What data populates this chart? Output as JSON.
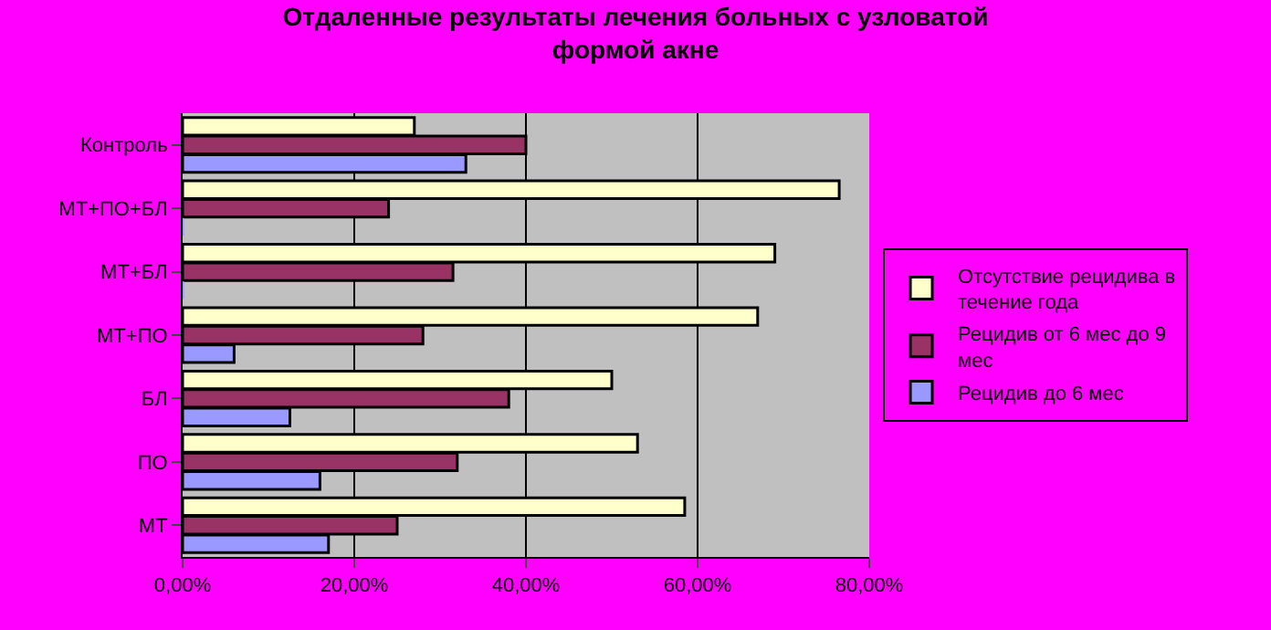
{
  "chart_data": {
    "type": "bar",
    "orientation": "horizontal",
    "title": "Отдаленные результаты лечения больных с узловатой формой акне",
    "categories": [
      "Контроль",
      "МТ+ПО+БЛ",
      "МТ+БЛ",
      "МТ+ПО",
      "БЛ",
      "ПО",
      "МТ"
    ],
    "series": [
      {
        "name": "Отсутствие рецидива в течение года",
        "color": "#ffffcc",
        "values": [
          27,
          76.5,
          69,
          67,
          50,
          53,
          58.5
        ]
      },
      {
        "name": "Рецидив от 6 мес до 9 мес",
        "color": "#993366",
        "values": [
          40,
          24,
          31.5,
          28,
          38,
          32,
          25
        ]
      },
      {
        "name": "Рецидив до 6 мес",
        "color": "#9999ff",
        "values": [
          33,
          0,
          0,
          6,
          12.5,
          16,
          17
        ]
      }
    ],
    "xlim": [
      0,
      80
    ],
    "xticks": [
      {
        "value": 0,
        "label": "0,00%"
      },
      {
        "value": 20,
        "label": "20,00%"
      },
      {
        "value": 40,
        "label": "40,00%"
      },
      {
        "value": 60,
        "label": "60,00%"
      },
      {
        "value": 80,
        "label": "80,00%"
      }
    ],
    "grid": "x",
    "legend": "right"
  }
}
